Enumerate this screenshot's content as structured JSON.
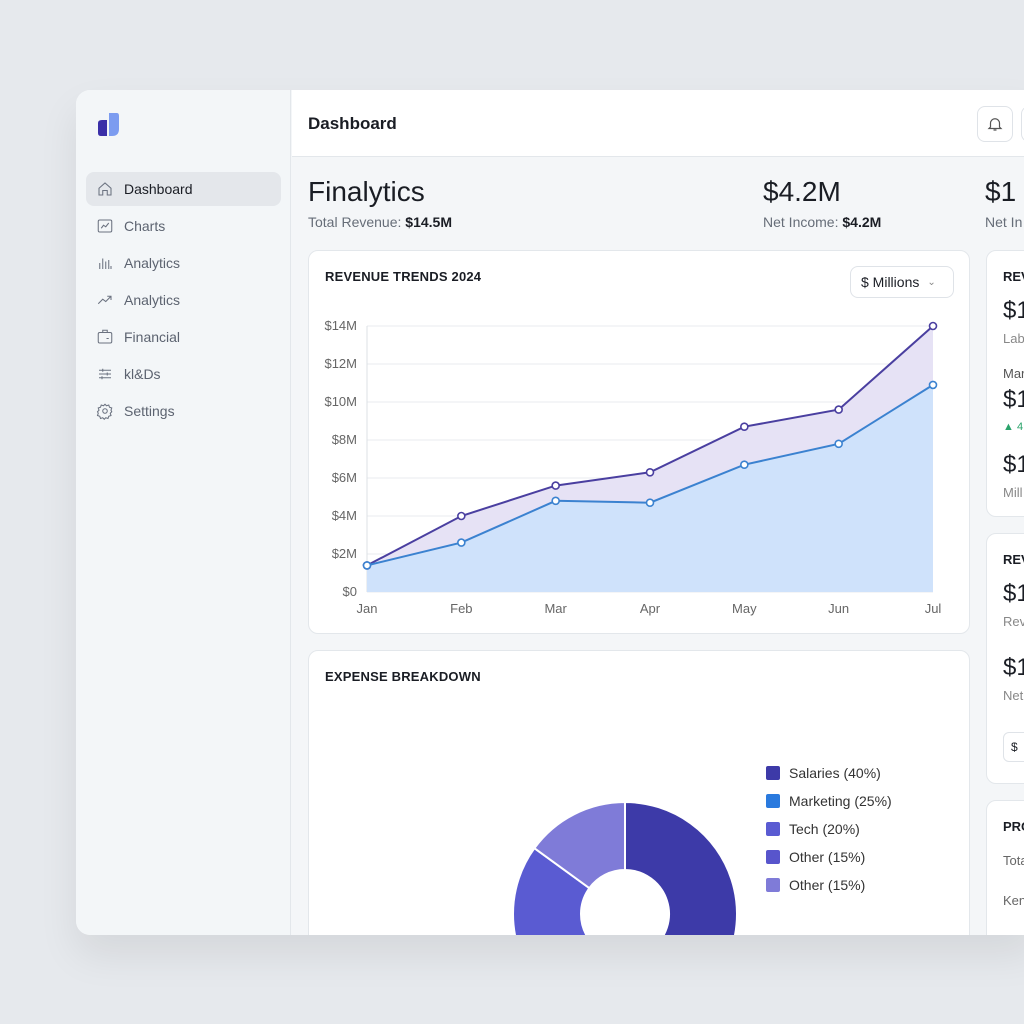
{
  "sidebar": {
    "items": [
      {
        "label": "Dashboard",
        "icon": "home-icon",
        "active": true
      },
      {
        "label": "Charts",
        "icon": "chart-line-icon"
      },
      {
        "label": "Analytics",
        "icon": "bar-chart-icon"
      },
      {
        "label": "Analytics",
        "icon": "trending-up-icon"
      },
      {
        "label": "Financial",
        "icon": "briefcase-icon"
      },
      {
        "label": "kl&Ds",
        "icon": "sliders-icon"
      },
      {
        "label": "Settings",
        "icon": "gear-icon"
      }
    ]
  },
  "header": {
    "title": "Dashboard"
  },
  "kpis": [
    {
      "big": "Finalytics",
      "label": "Total Revenue: ",
      "value": "$14.5M"
    },
    {
      "big": "$4.2M",
      "label": "Net Income: ",
      "value": "$4.2M"
    },
    {
      "big": "$1",
      "label": "Net In",
      "value": ""
    }
  ],
  "revenue": {
    "title": "REVENUE TRENDS 2024",
    "unit_select": "$ Millions"
  },
  "chart_data": {
    "type": "area",
    "x": [
      "Jan",
      "Feb",
      "Mar",
      "Apr",
      "May",
      "Jun",
      "Jul"
    ],
    "yticks": [
      "$0",
      "$2M",
      "$4M",
      "$6M",
      "$8M",
      "$10M",
      "$12M",
      "$14M"
    ],
    "ylim": [
      0,
      14
    ],
    "grid": true,
    "series": [
      {
        "values": [
          1.4,
          4.0,
          5.6,
          6.3,
          8.7,
          9.6,
          14.0
        ],
        "color": "#4a3fa0"
      },
      {
        "values": [
          1.4,
          2.6,
          4.8,
          4.7,
          6.7,
          7.8,
          10.9
        ],
        "color": "#3b82d0"
      }
    ]
  },
  "expense": {
    "title": "EXPENSE BREAKDOWN",
    "chart_data": {
      "type": "pie",
      "donut": true,
      "slices": [
        {
          "label": "Salaries (40%)",
          "value": 40,
          "color": "#3d3aa8"
        },
        {
          "label": "Marketing (25%)",
          "value": 25,
          "color": "#2a7ade"
        },
        {
          "label": "Tech (20%)",
          "value": 20,
          "color": "#5a5bd2"
        },
        {
          "label": "Other (15%)",
          "value": 15,
          "color": "#5855cc"
        },
        {
          "label": "Other (15%)",
          "value": 15,
          "color": "#7f7bd8"
        }
      ]
    }
  },
  "right": {
    "card1": {
      "title": "REV",
      "v1": "$1",
      "l1": "Lab",
      "l2": "Mar",
      "v2": "$1",
      "delta": "▲ 4",
      "v3": "$1",
      "l3": "Mill"
    },
    "card2": {
      "title": "REV",
      "v1": "$1",
      "l1": "Rev",
      "v2": "$1",
      "l2": "Net",
      "btn": "$"
    },
    "card3": {
      "title": "PRO",
      "r1": "Tota",
      "r2": "Ken"
    }
  }
}
